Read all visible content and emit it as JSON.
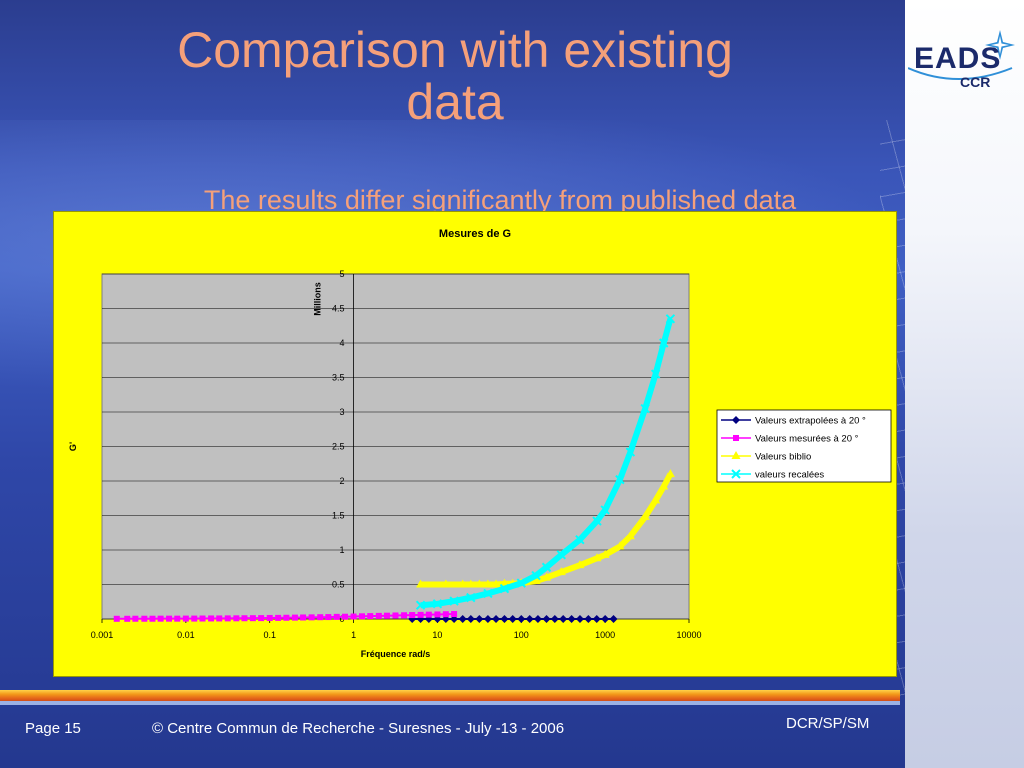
{
  "slide": {
    "title_line1": "Comparison with existing",
    "title_line2": "data",
    "subtitle": "The results differ significantly from published data"
  },
  "logo": {
    "brand": "EADS",
    "sub": "CCR"
  },
  "footer": {
    "page": "Page 15",
    "copyright": "© Centre Commun de Recherche  - Suresnes - July -13 - 2006",
    "dept": "DCR/SP/SM"
  },
  "colors": {
    "title": "#f5a07a",
    "chart_background": "#ffff00",
    "plot_background": "#c0c0c0",
    "series_extrapolees": "#000080",
    "series_mesurees": "#ff00ff",
    "series_biblio": "#ffff00",
    "series_recalees": "#00ffff"
  },
  "chart_data": {
    "type": "scatter",
    "title": "Mesures de G",
    "xlabel": "Fréquence rad/s",
    "ylabel": "G'",
    "y_unit_label": "Millions",
    "x_scale": "log",
    "xlim": [
      0.001,
      10000
    ],
    "ylim": [
      0,
      5
    ],
    "x_ticks": [
      "0.001",
      "0.01",
      "0.1",
      "1",
      "10",
      "100",
      "1000",
      "10000"
    ],
    "y_ticks": [
      "0",
      "0.5",
      "1",
      "1.5",
      "2",
      "2.5",
      "3",
      "3.5",
      "4",
      "4.5",
      "5"
    ],
    "grid": true,
    "legend_position": "right",
    "series": [
      {
        "name": "Valeurs extrapolées à 20 °",
        "marker": "diamond",
        "x": [
          5,
          6.3,
          7.9,
          10,
          12.6,
          15.8,
          20,
          25,
          31.6,
          40,
          50,
          63,
          79,
          100,
          126,
          158,
          200,
          251,
          316,
          398,
          501,
          631,
          794,
          1000,
          1259
        ],
        "values": [
          0,
          0,
          0,
          0,
          0,
          0,
          0,
          0,
          0,
          0,
          0,
          0,
          0,
          0,
          0,
          0,
          0,
          0,
          0,
          0,
          0,
          0,
          0,
          0,
          0
        ]
      },
      {
        "name": "Valeurs mesurées à 20 °",
        "marker": "square",
        "x": [
          0.0015,
          0.002,
          0.0025,
          0.0032,
          0.004,
          0.005,
          0.0063,
          0.0079,
          0.01,
          0.0126,
          0.0158,
          0.02,
          0.025,
          0.0316,
          0.04,
          0.05,
          0.063,
          0.079,
          0.1,
          0.126,
          0.158,
          0.2,
          0.25,
          0.316,
          0.4,
          0.5,
          0.63,
          0.79,
          1,
          1.26,
          1.58,
          2,
          2.5,
          3.16,
          4,
          5,
          6.3,
          7.9,
          10,
          12.6,
          15.8
        ],
        "values": [
          0.003,
          0.003,
          0.004,
          0.004,
          0.004,
          0.005,
          0.005,
          0.005,
          0.006,
          0.006,
          0.007,
          0.008,
          0.008,
          0.009,
          0.01,
          0.011,
          0.012,
          0.013,
          0.015,
          0.016,
          0.018,
          0.02,
          0.022,
          0.024,
          0.026,
          0.028,
          0.031,
          0.033,
          0.036,
          0.039,
          0.042,
          0.045,
          0.048,
          0.051,
          0.054,
          0.057,
          0.06,
          0.063,
          0.066,
          0.069,
          0.072
        ]
      },
      {
        "name": "Valeurs biblio",
        "marker": "triangle",
        "x": [
          6.3,
          12.6,
          20,
          25,
          31.6,
          40,
          50,
          63,
          79,
          100,
          150,
          200,
          300,
          500,
          800,
          1000,
          1500,
          2000,
          3000,
          4000,
          5000,
          6000
        ],
        "values": [
          0.5,
          0.5,
          0.5,
          0.5,
          0.5,
          0.5,
          0.5,
          0.51,
          0.51,
          0.52,
          0.55,
          0.6,
          0.68,
          0.78,
          0.88,
          0.93,
          1.05,
          1.2,
          1.48,
          1.72,
          1.92,
          2.1
        ]
      },
      {
        "name": "valeurs recalées",
        "marker": "x",
        "x": [
          6.3,
          10,
          15.8,
          25,
          40,
          63,
          100,
          150,
          200,
          300,
          500,
          800,
          1000,
          1500,
          2000,
          3000,
          4000,
          5000,
          6000
        ],
        "values": [
          0.2,
          0.22,
          0.26,
          0.31,
          0.37,
          0.44,
          0.52,
          0.63,
          0.75,
          0.93,
          1.15,
          1.42,
          1.58,
          2.02,
          2.42,
          3.05,
          3.55,
          4.0,
          4.35
        ]
      }
    ]
  }
}
